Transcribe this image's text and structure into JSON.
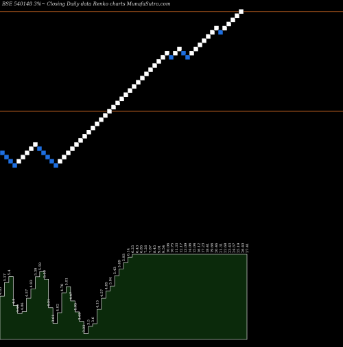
{
  "header": {
    "text": "BSE 540148  3%~  Closing Daily data  Renko  charts MunafaSutra.com"
  },
  "colors": {
    "background": "#000000",
    "up_brick": "#ffffff",
    "down_brick": "#1e6fe0",
    "reference_line": "#b25a1e",
    "volume_fill": "#0b2a0b",
    "volume_stroke": "#ffffff",
    "label_color": "#ffffff"
  },
  "chart_data": {
    "type": "renko",
    "brick_size_percent": 3,
    "bricks": [
      "down",
      "down",
      "down",
      "down",
      "up",
      "up",
      "up",
      "up",
      "up",
      "down",
      "down",
      "down",
      "down",
      "down",
      "up",
      "up",
      "up",
      "up",
      "up",
      "up",
      "up",
      "up",
      "up",
      "up",
      "up",
      "up",
      "up",
      "up",
      "up",
      "up",
      "up",
      "up",
      "up",
      "up",
      "up",
      "up",
      "up",
      "up",
      "up",
      "up",
      "up",
      "down",
      "up",
      "up",
      "down",
      "down",
      "up",
      "up",
      "up",
      "up",
      "up",
      "up",
      "up",
      "down",
      "up",
      "up",
      "up",
      "up",
      "up"
    ],
    "reference_lines": [
      {
        "name": "upper",
        "level": 33
      },
      {
        "name": "lower",
        "level": 9
      }
    ],
    "volume_labels": [
      "4.65",
      "5.17",
      "5.4",
      "4.3",
      "3.99",
      "4.06",
      "4.57",
      "4.93",
      "5.39",
      "5.59",
      "5.30",
      "4.21",
      "3.61",
      "4.02",
      "4.78",
      "5.01",
      "4.47",
      "4.05",
      "3.69",
      "3.22",
      "3.5",
      "3.6",
      "4.15",
      "4.57",
      "4.85",
      "5.04",
      "5.43",
      "5.69",
      "5.93",
      "6.14",
      "6.25",
      "6.43",
      "6.85",
      "7.26",
      "7.87",
      "8.45",
      "9.01",
      "9.54",
      "10.06",
      "10.75",
      "11.33",
      "12.17",
      "13.09",
      "14.06",
      "15.04",
      "16.12",
      "17.23",
      "18.41",
      "19.66",
      "20.46",
      "21.31",
      "22.68",
      "23.43",
      "24.57",
      "25.19",
      "26.40",
      "27.41"
    ]
  }
}
